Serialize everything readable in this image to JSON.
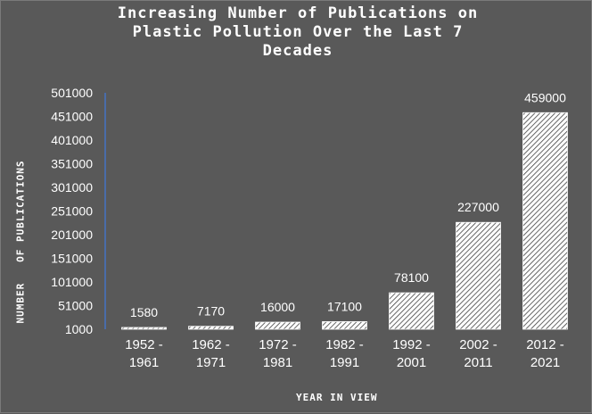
{
  "chart_data": {
    "type": "bar",
    "title": "Increasing Number of Publications on Plastic Pollution Over the Last 7 Decades",
    "title_lines": [
      "Increasing Number of Publications on",
      "Plastic Pollution Over the Last 7",
      "Decades"
    ],
    "xlabel": "YEAR IN VIEW",
    "ylabel": "NUMBER   OF PUBLICATIONS",
    "categories": [
      [
        "1952 -",
        "1961"
      ],
      [
        "1962 -",
        "1971"
      ],
      [
        "1972 -",
        "1981"
      ],
      [
        "1982 -",
        "1991"
      ],
      [
        "1992 -",
        "2001"
      ],
      [
        "2002 -",
        "2011"
      ],
      [
        "2012 -",
        "2021"
      ]
    ],
    "values": [
      1580,
      7170,
      16000,
      17100,
      78100,
      227000,
      459000
    ],
    "data_labels": [
      "1580",
      "7170",
      "16000",
      "17100",
      "78100",
      "227000",
      "459000"
    ],
    "y_ticks": [
      1000,
      51000,
      101000,
      151000,
      201000,
      251000,
      301000,
      351000,
      401000,
      451000,
      501000
    ],
    "ylim": [
      1000,
      501000
    ],
    "grid": false,
    "bar_fill": "diagonal-hatch",
    "colors": {
      "background": "#595959",
      "bar_line": "#ffffff",
      "bar_hatch": "#404040",
      "axis": "#4472c4",
      "text": "#ffffff"
    }
  }
}
